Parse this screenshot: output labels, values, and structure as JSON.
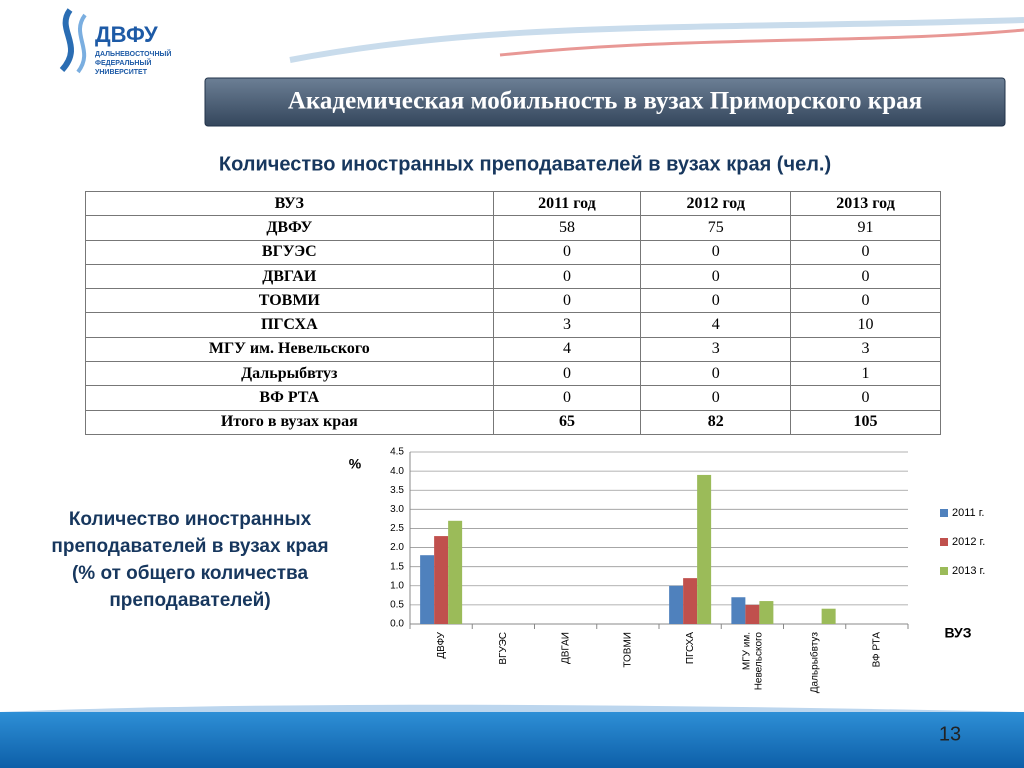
{
  "logo": {
    "abbr": "ДВФУ",
    "lines": [
      "ДАЛЬНЕВОСТОЧНЫЙ",
      "ФЕДЕРАЛЬНЫЙ",
      "УНИВЕРСИТЕТ"
    ]
  },
  "header": {
    "title": "Академическая мобильность в вузах Приморского края"
  },
  "subtitle": "Количество иностранных преподавателей в вузах края  (чел.)",
  "table": {
    "columns": [
      "ВУЗ",
      "2011 год",
      "2012 год",
      "2013 год"
    ],
    "rows": [
      [
        "ДВФУ",
        58,
        75,
        91
      ],
      [
        "ВГУЭС",
        0,
        0,
        0
      ],
      [
        "ДВГАИ",
        0,
        0,
        0
      ],
      [
        "ТОВМИ",
        0,
        0,
        0
      ],
      [
        "ПГСХА",
        3,
        4,
        10
      ],
      [
        "МГУ им. Невельского",
        4,
        3,
        3
      ],
      [
        "Дальрыбвтуз",
        0,
        0,
        1
      ],
      [
        "ВФ РТА",
        0,
        0,
        0
      ],
      [
        "Итого в вузах края",
        65,
        82,
        105
      ]
    ]
  },
  "side_text": [
    "Количество иностранных",
    "преподавателей в вузах края",
    "(% от общего количества",
    "преподавателей)"
  ],
  "chart_data": {
    "type": "bar",
    "ylabel": "%",
    "xlabel": "ВУЗ",
    "categories": [
      "ДВФУ",
      "ВГУЭС",
      "ДВГАИ",
      "ТОВМИ",
      "ПГСХА",
      "МГУ им. Невельского",
      "Дальрыбвтуз",
      "ВФ РТА"
    ],
    "series": [
      {
        "name": "2011 г.",
        "color": "#4f81bd",
        "values": [
          1.8,
          0,
          0,
          0,
          1.0,
          0.7,
          0,
          0
        ]
      },
      {
        "name": "2012 г.",
        "color": "#c0504d",
        "values": [
          2.3,
          0,
          0,
          0,
          1.2,
          0.5,
          0,
          0
        ]
      },
      {
        "name": "2013 г.",
        "color": "#9bbb59",
        "values": [
          2.7,
          0,
          0,
          0,
          3.9,
          0.6,
          0.4,
          0
        ]
      }
    ],
    "ylim": [
      0,
      4.5
    ],
    "yticks": [
      {
        "value": 0,
        "label": "0.0"
      },
      {
        "value": 0.5,
        "label": "0.5"
      },
      {
        "value": 1,
        "label": "1.0"
      },
      {
        "value": 1.5,
        "label": "1.5"
      },
      {
        "value": 2,
        "label": "2.0"
      },
      {
        "value": 2.5,
        "label": "2.5"
      },
      {
        "value": 3,
        "label": "3.0"
      },
      {
        "value": 3.5,
        "label": "3.5"
      },
      {
        "value": 4,
        "label": "4.0"
      },
      {
        "value": 4.5,
        "label": "4.5"
      }
    ],
    "grid": true,
    "legend": "right"
  },
  "page_number": 13
}
